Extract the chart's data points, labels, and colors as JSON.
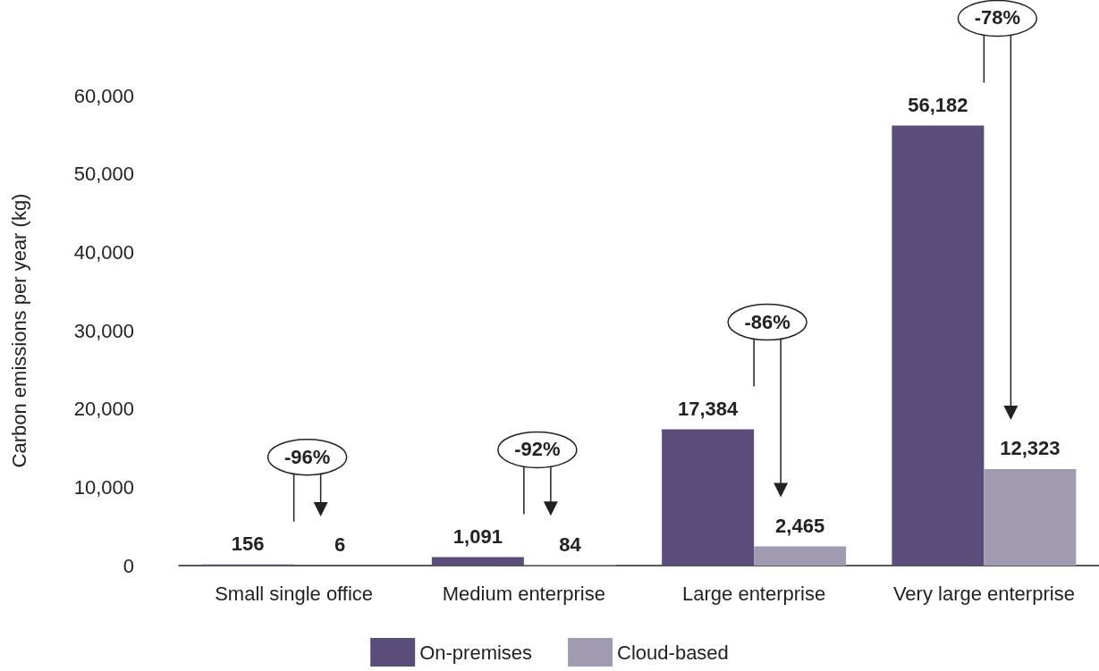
{
  "chart_data": {
    "type": "bar",
    "ylabel": "Carbon emissions per year (kg)",
    "categories": [
      "Small single office",
      "Medium enterprise",
      "Large enterprise",
      "Very large enterprise"
    ],
    "series": [
      {
        "name": "On-premises",
        "color": "#5b4d7a",
        "values": [
          156,
          1091,
          17384,
          56182
        ]
      },
      {
        "name": "Cloud-based",
        "color": "#a09bb0",
        "values": [
          6,
          84,
          2465,
          12323
        ]
      }
    ],
    "ylim": [
      0,
      60000
    ],
    "yticks": [
      {
        "value": 0,
        "label": "0"
      },
      {
        "value": 10000,
        "label": "10,000"
      },
      {
        "value": 20000,
        "label": "20,000"
      },
      {
        "value": 30000,
        "label": "30,000"
      },
      {
        "value": 40000,
        "label": "40,000"
      },
      {
        "value": 50000,
        "label": "50,000"
      },
      {
        "value": 60000,
        "label": "60,000"
      }
    ],
    "value_labels": [
      [
        "156",
        "1,091",
        "17,384",
        "56,182"
      ],
      [
        "6",
        "84",
        "2,465",
        "12,323"
      ]
    ],
    "annotations": [
      "-96%",
      "-92%",
      "-86%",
      "-78%"
    ],
    "grid": false,
    "legend": "bottom"
  }
}
